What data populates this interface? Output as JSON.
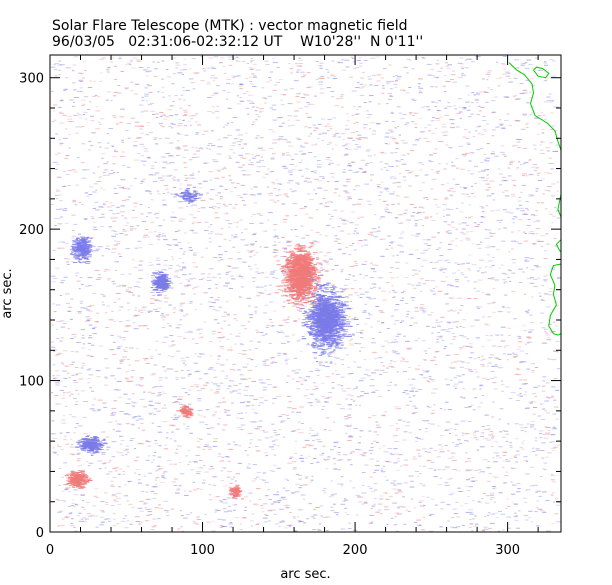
{
  "header": {
    "title": "Solar Flare Telescope (MTK) : vector magnetic field",
    "subtitle": "96/03/05   02:31:06-02:32:12 UT    W10'28''  N 0'11''"
  },
  "chart_data": {
    "type": "scatter",
    "title": "Solar Flare Telescope (MTK) : vector magnetic field",
    "subtitle": "96/03/05   02:31:06-02:32:12 UT    W10'28''  N 0'11''",
    "xlabel": "arc sec.",
    "ylabel": "arc sec.",
    "xlim": [
      0,
      335
    ],
    "ylim": [
      0,
      315
    ],
    "x_ticks": [
      0,
      100,
      200,
      300
    ],
    "y_ticks": [
      0,
      100,
      200,
      300
    ],
    "grid": false,
    "colors": {
      "positive": "#f07a7a",
      "negative": "#7a7ae8",
      "contour": "#00cc00"
    },
    "series": [
      {
        "polarity": "positive",
        "color": "#f07a7a",
        "regions": [
          {
            "center": [
              163,
              170
            ],
            "spread": [
              8,
              13
            ],
            "density": "high"
          },
          {
            "center": [
              17,
              35
            ],
            "spread": [
              5,
              4
            ],
            "density": "medium"
          },
          {
            "center": [
              88,
              80
            ],
            "spread": [
              3,
              3
            ],
            "density": "low"
          },
          {
            "center": [
              120,
              27
            ],
            "spread": [
              3,
              3
            ],
            "density": "low"
          }
        ]
      },
      {
        "polarity": "negative",
        "color": "#7a7ae8",
        "regions": [
          {
            "center": [
              180,
              140
            ],
            "spread": [
              9,
              15
            ],
            "density": "high"
          },
          {
            "center": [
              26,
              58
            ],
            "spread": [
              6,
              4
            ],
            "density": "medium"
          },
          {
            "center": [
              20,
              187
            ],
            "spread": [
              5,
              6
            ],
            "density": "medium"
          },
          {
            "center": [
              72,
              165
            ],
            "spread": [
              4,
              5
            ],
            "density": "medium"
          },
          {
            "center": [
              90,
              222
            ],
            "spread": [
              5,
              3
            ],
            "density": "low"
          }
        ]
      },
      {
        "polarity": "contour",
        "color": "#00cc00",
        "lines": [
          [
            [
              301,
              310
            ],
            [
              306,
              305
            ],
            [
              311,
              302
            ],
            [
              316,
              296
            ],
            [
              317,
              290
            ],
            [
              315,
              283
            ],
            [
              318,
              275
            ],
            [
              326,
              270
            ],
            [
              331,
              265
            ],
            [
              333,
              258
            ],
            [
              335,
              252
            ]
          ],
          [
            [
              317,
              305
            ],
            [
              320,
              301
            ],
            [
              325,
              300
            ],
            [
              327,
              303
            ],
            [
              323,
              306
            ],
            [
              319,
              307
            ],
            [
              317,
              305
            ]
          ],
          [
            [
              335,
              223
            ],
            [
              333,
              213
            ],
            [
              335,
              208
            ]
          ],
          [
            [
              335,
              193
            ],
            [
              332,
              190
            ],
            [
              334,
              186
            ],
            [
              335,
              185
            ]
          ],
          [
            [
              335,
              177
            ],
            [
              330,
              176
            ],
            [
              328,
              170
            ],
            [
              331,
              163
            ],
            [
              330,
              157
            ],
            [
              332,
              150
            ],
            [
              328,
              143
            ],
            [
              327,
              136
            ],
            [
              330,
              131
            ],
            [
              333,
              130
            ],
            [
              335,
              131
            ]
          ]
        ]
      }
    ]
  }
}
